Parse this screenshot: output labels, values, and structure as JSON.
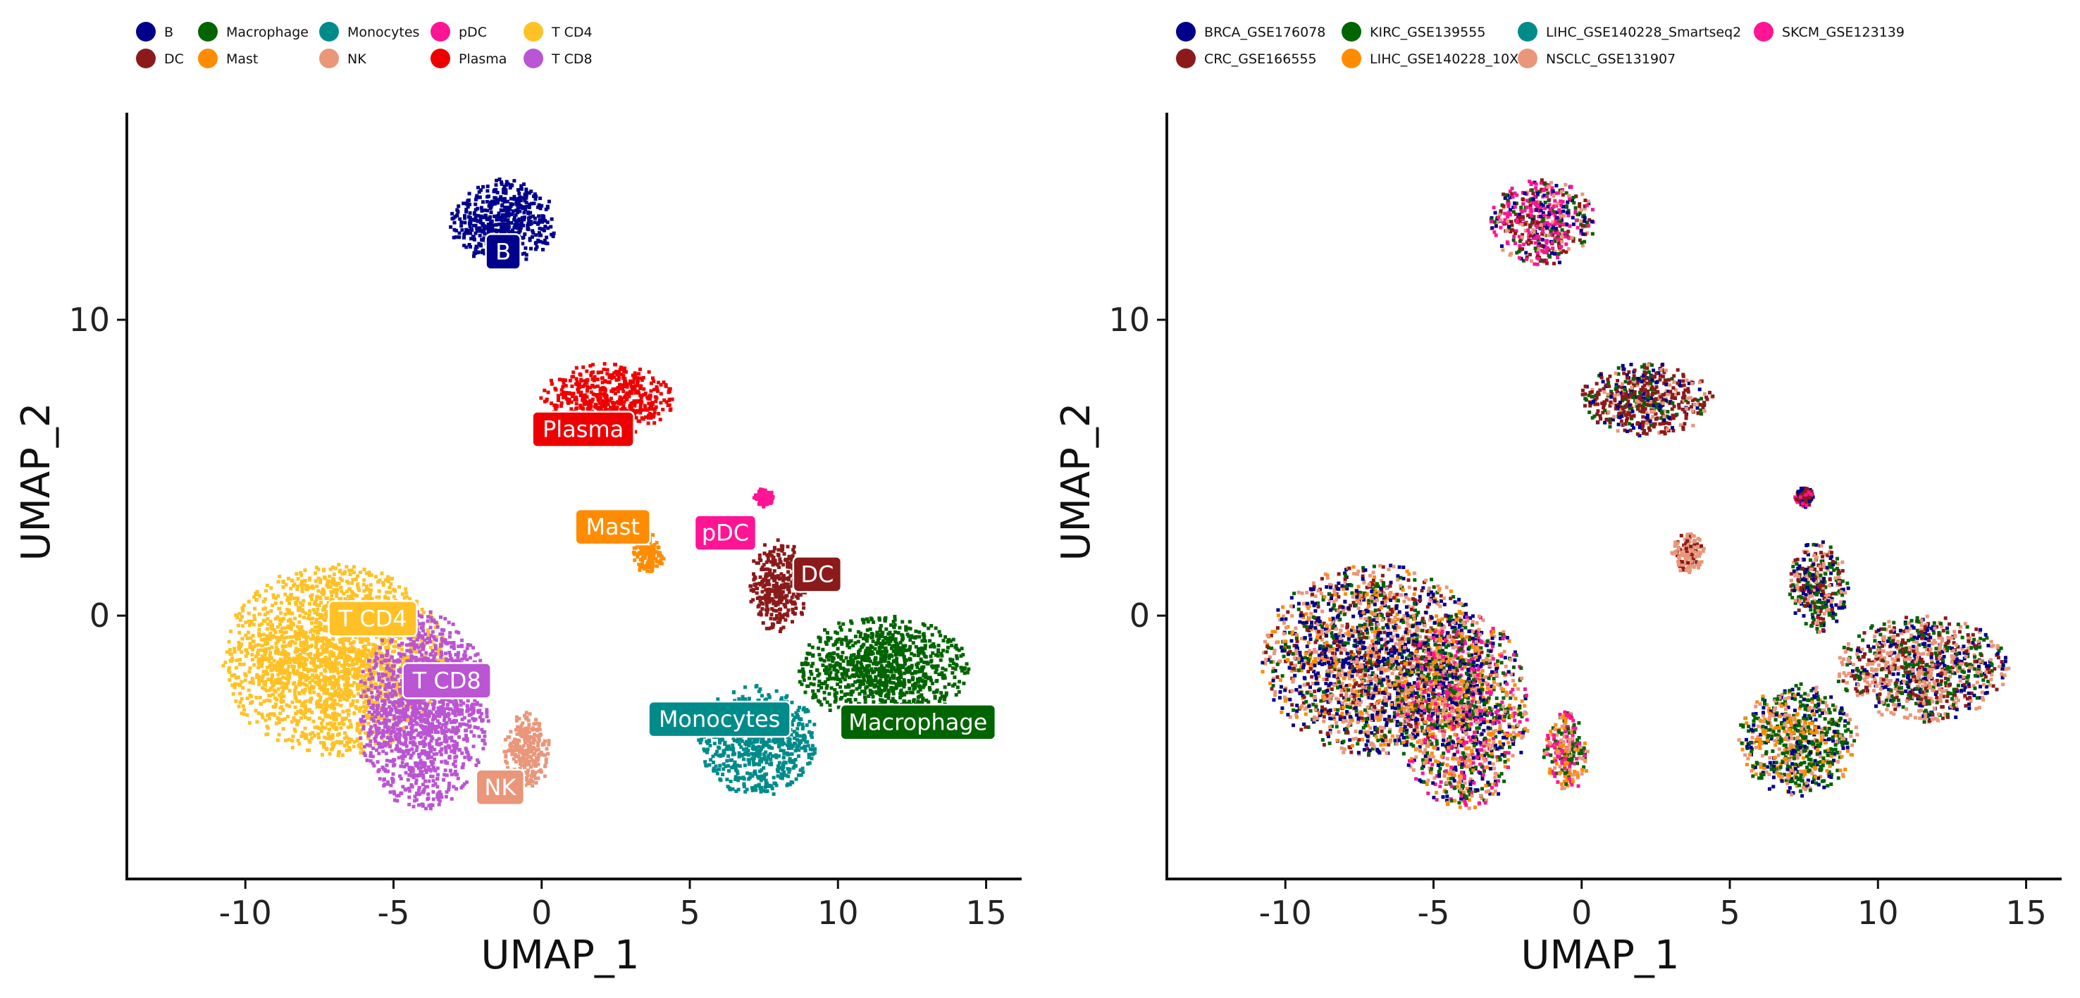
{
  "chart_data": [
    {
      "type": "scatter",
      "title": "",
      "xlabel": "UMAP_1",
      "ylabel": "UMAP_2",
      "xlim": [
        -14,
        16.2
      ],
      "ylim": [
        -8.9,
        17.0
      ],
      "xticks": [
        -10,
        -5,
        0,
        5,
        10,
        15
      ],
      "xtick_labels": [
        "-10",
        "-5",
        "0",
        "5",
        "10",
        "15"
      ],
      "yticks": [
        0,
        10
      ],
      "ytick_labels": [
        "0",
        "10"
      ],
      "grid": false,
      "legend_position": "top",
      "legend": [
        {
          "name": "B",
          "color": "#00008B"
        },
        {
          "name": "DC",
          "color": "#8B1A1A"
        },
        {
          "name": "Macrophage",
          "color": "#006400"
        },
        {
          "name": "Mast",
          "color": "#FF8C00"
        },
        {
          "name": "Monocytes",
          "color": "#008B8B"
        },
        {
          "name": "NK",
          "color": "#E9967A"
        },
        {
          "name": "pDC",
          "color": "#FF1493"
        },
        {
          "name": "Plasma",
          "color": "#EE0000"
        },
        {
          "name": "T CD4",
          "color": "#FFC125"
        },
        {
          "name": "T CD8",
          "color": "#BA55D3"
        }
      ],
      "clusters": [
        {
          "name": "B",
          "color": "#00008B",
          "label": "B",
          "center": [
            -1.3,
            13.3
          ],
          "spread": [
            1.6,
            1.3
          ],
          "label_pos": [
            -1.3,
            12.3
          ]
        },
        {
          "name": "Plasma",
          "color": "#EE0000",
          "label": "Plasma",
          "center": [
            2.2,
            7.3
          ],
          "spread": [
            2.0,
            1.1
          ],
          "label_pos": [
            1.4,
            6.3
          ]
        },
        {
          "name": "Mast",
          "color": "#FF8C00",
          "label": "Mast",
          "center": [
            3.6,
            2.1
          ],
          "spread": [
            0.5,
            0.6
          ],
          "label_pos": [
            2.4,
            3.0
          ]
        },
        {
          "name": "pDC",
          "color": "#FF1493",
          "label": "pDC",
          "center": [
            7.5,
            4.0
          ],
          "spread": [
            0.3,
            0.3
          ],
          "label_pos": [
            6.2,
            2.8
          ]
        },
        {
          "name": "DC",
          "color": "#8B1A1A",
          "label": "DC",
          "center": [
            8.0,
            1.0
          ],
          "spread": [
            0.9,
            1.4
          ],
          "label_pos": [
            9.3,
            1.4
          ]
        },
        {
          "name": "Macrophage",
          "color": "#006400",
          "label": "Macrophage",
          "center": [
            11.5,
            -1.8
          ],
          "spread": [
            2.6,
            1.6
          ],
          "label_pos": [
            12.7,
            -3.6
          ]
        },
        {
          "name": "Monocytes",
          "color": "#008B8B",
          "label": "Monocytes",
          "center": [
            7.3,
            -4.2
          ],
          "spread": [
            1.8,
            1.7
          ],
          "label_pos": [
            6.0,
            -3.5
          ]
        },
        {
          "name": "T CD4",
          "color": "#FFC125",
          "label": "T CD4",
          "center": [
            -7.0,
            -1.5
          ],
          "spread": [
            3.4,
            2.9
          ],
          "label_pos": [
            -5.7,
            -0.1
          ]
        },
        {
          "name": "T CD8",
          "color": "#BA55D3",
          "label": "T CD8",
          "center": [
            -4.0,
            -3.2
          ],
          "spread": [
            2.0,
            3.0
          ],
          "label_pos": [
            -3.2,
            -2.2
          ]
        },
        {
          "name": "NK",
          "color": "#E9967A",
          "label": "NK",
          "center": [
            -0.5,
            -4.6
          ],
          "spread": [
            0.7,
            1.2
          ],
          "label_pos": [
            -1.4,
            -5.8
          ]
        }
      ]
    },
    {
      "type": "scatter",
      "title": "",
      "xlabel": "UMAP_1",
      "ylabel": "UMAP_2",
      "xlim": [
        -14,
        16.2
      ],
      "ylim": [
        -8.9,
        17.0
      ],
      "xticks": [
        -10,
        -5,
        0,
        5,
        10,
        15
      ],
      "xtick_labels": [
        "-10",
        "-5",
        "0",
        "5",
        "10",
        "15"
      ],
      "yticks": [
        0,
        10
      ],
      "ytick_labels": [
        "0",
        "10"
      ],
      "grid": false,
      "legend_position": "top",
      "legend": [
        {
          "name": "BRCA_GSE176078",
          "color": "#00008B"
        },
        {
          "name": "CRC_GSE166555",
          "color": "#8B1A1A"
        },
        {
          "name": "KIRC_GSE139555",
          "color": "#006400"
        },
        {
          "name": "LIHC_GSE140228_10X",
          "color": "#FF8C00"
        },
        {
          "name": "LIHC_GSE140228_Smartseq2",
          "color": "#008B8B"
        },
        {
          "name": "NSCLC_GSE131907",
          "color": "#E9967A"
        },
        {
          "name": "SKCM_GSE123139",
          "color": "#FF1493"
        }
      ],
      "clusters": [
        {
          "center": [
            -1.3,
            13.3
          ],
          "spread": [
            1.6,
            1.3
          ],
          "mix": [
            "#FF1493",
            "#FF1493",
            "#E9967A",
            "#006400",
            "#00008B",
            "#8B1A1A"
          ]
        },
        {
          "center": [
            2.2,
            7.3
          ],
          "spread": [
            2.0,
            1.1
          ],
          "mix": [
            "#8B1A1A",
            "#8B1A1A",
            "#8B1A1A",
            "#E9967A",
            "#00008B",
            "#006400"
          ]
        },
        {
          "center": [
            3.6,
            2.1
          ],
          "spread": [
            0.5,
            0.6
          ],
          "mix": [
            "#E9967A",
            "#E9967A",
            "#E9967A",
            "#8B1A1A"
          ]
        },
        {
          "center": [
            7.5,
            4.0
          ],
          "spread": [
            0.3,
            0.3
          ],
          "mix": [
            "#FF1493",
            "#00008B",
            "#8B1A1A"
          ]
        },
        {
          "center": [
            8.0,
            1.0
          ],
          "spread": [
            0.9,
            1.4
          ],
          "mix": [
            "#E9967A",
            "#8B1A1A",
            "#006400",
            "#00008B"
          ]
        },
        {
          "center": [
            11.5,
            -1.8
          ],
          "spread": [
            2.6,
            1.6
          ],
          "mix": [
            "#E9967A",
            "#E9967A",
            "#006400",
            "#00008B",
            "#8B1A1A"
          ]
        },
        {
          "center": [
            7.3,
            -4.2
          ],
          "spread": [
            1.8,
            1.7
          ],
          "mix": [
            "#006400",
            "#006400",
            "#E9967A",
            "#00008B",
            "#FF8C00"
          ]
        },
        {
          "center": [
            -7.0,
            -1.5
          ],
          "spread": [
            3.4,
            2.9
          ],
          "mix": [
            "#E9967A",
            "#E9967A",
            "#00008B",
            "#00008B",
            "#FF8C00",
            "#006400",
            "#8B1A1A"
          ]
        },
        {
          "center": [
            -4.0,
            -3.2
          ],
          "spread": [
            2.0,
            3.0
          ],
          "mix": [
            "#E9967A",
            "#FF1493",
            "#00008B",
            "#006400",
            "#FF8C00"
          ]
        },
        {
          "center": [
            -0.5,
            -4.6
          ],
          "spread": [
            0.7,
            1.2
          ],
          "mix": [
            "#E9967A",
            "#FF8C00",
            "#FF1493",
            "#006400"
          ]
        }
      ]
    }
  ]
}
